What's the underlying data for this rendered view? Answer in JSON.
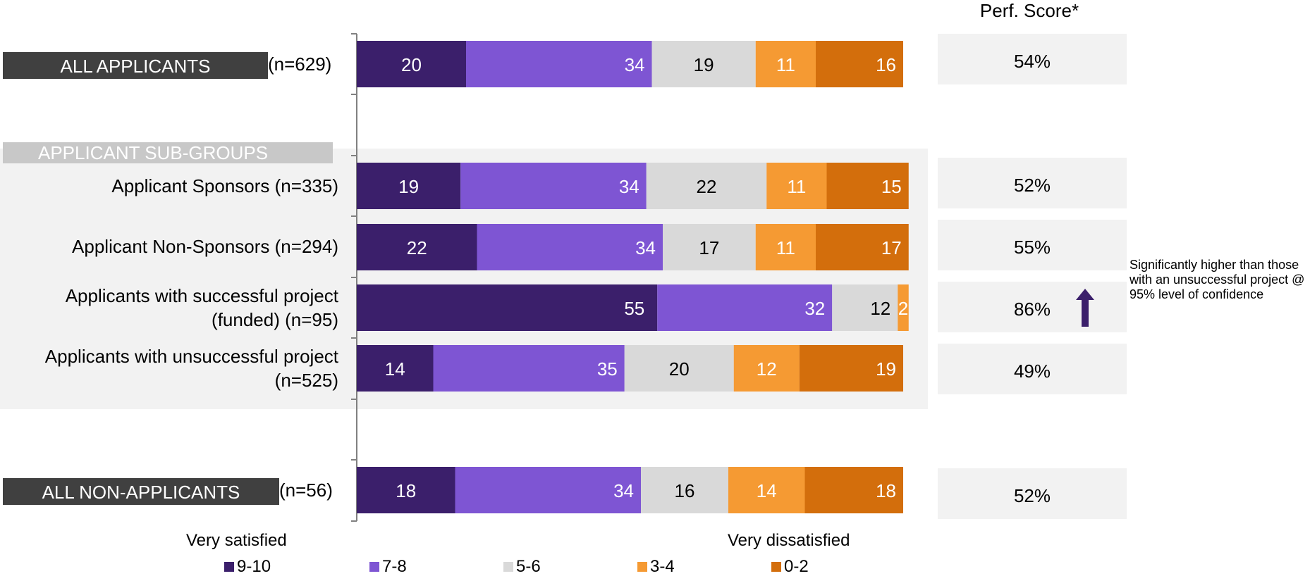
{
  "chart_data": {
    "type": "bar",
    "orientation": "horizontal",
    "stacked": true,
    "categories": [
      "ALL APPLICANTS",
      "Applicant Sponsors",
      "Applicant Non-Sponsors",
      "Applicants with successful project (funded)",
      "Applicants with unsuccessful project",
      "ALL NON-APPLICANTS"
    ],
    "series": [
      {
        "name": "9-10",
        "color": "#3b1f6b",
        "values": [
          20,
          19,
          22,
          55,
          14,
          18
        ]
      },
      {
        "name": "7-8",
        "color": "#7e55d3",
        "values": [
          34,
          34,
          34,
          32,
          35,
          34
        ]
      },
      {
        "name": "5-6",
        "color": "#d9d9d9",
        "values": [
          19,
          22,
          17,
          12,
          20,
          16
        ]
      },
      {
        "name": "3-4",
        "color": "#f59a33",
        "values": [
          11,
          11,
          11,
          2,
          12,
          14
        ]
      },
      {
        "name": "0-2",
        "color": "#d36e0c",
        "values": [
          16,
          15,
          17,
          0,
          19,
          18
        ]
      }
    ],
    "xlim": [
      0,
      100
    ],
    "legend_position": "bottom",
    "grid": false
  },
  "rows": {
    "all_applicants": {
      "label": "ALL APPLICANTS",
      "n": "(n=629)"
    },
    "sponsors": {
      "label": "Applicant Sponsors (n=335)"
    },
    "non_sponsors": {
      "label": "Applicant Non-Sponsors (n=294)"
    },
    "successful": {
      "line1": "Applicants with successful project",
      "line2": "(funded) (n=95)"
    },
    "unsuccessful": {
      "line1": "Applicants with unsuccessful project",
      "line2": "(n=525)"
    },
    "all_non_applicants": {
      "label": "ALL NON-APPLICANTS",
      "n": "(n=56)"
    }
  },
  "subgroup_header": "APPLICANT SUB-GROUPS",
  "perf": {
    "title": "Perf.  Score*",
    "scores": [
      "54%",
      "52%",
      "55%",
      "86%",
      "49%",
      "52%"
    ],
    "arrow_color": "#3b1f6b"
  },
  "note": "Significantly higher than those with an unsuccessful project @ 95% level of confidence",
  "anchors": {
    "left": "Very satisfied",
    "right": "Very dissatisfied"
  },
  "legend": [
    "9-10",
    "7-8",
    "5-6",
    "3-4",
    "0-2"
  ]
}
